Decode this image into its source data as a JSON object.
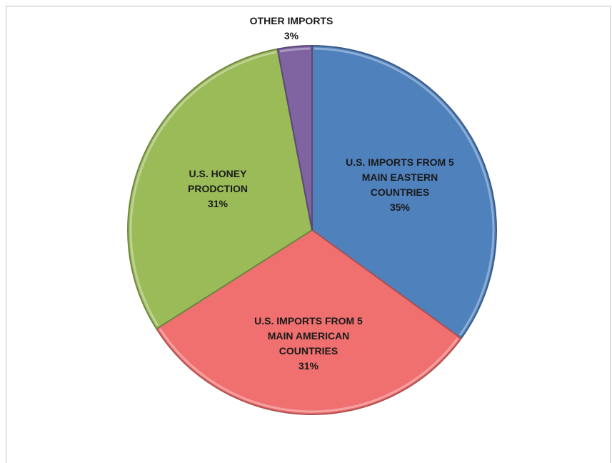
{
  "chart_data": {
    "type": "pie",
    "title": "",
    "slices": [
      {
        "label_lines": [
          "U.S. IMPORTS FROM 5",
          "MAIN EASTERN",
          "COUNTRIES"
        ],
        "percent_label": "35%",
        "value": 35,
        "color": "#4f81bd"
      },
      {
        "label_lines": [
          "U.S. IMPORTS FROM 5",
          "MAIN AMERICAN",
          "COUNTRIES"
        ],
        "percent_label": "31%",
        "value": 31,
        "color": "#f07070"
      },
      {
        "label_lines": [
          "U.S. HONEY",
          "PRODCTION"
        ],
        "percent_label": "31%",
        "value": 31,
        "color": "#9bbb59"
      },
      {
        "label_lines": [
          "OTHER IMPORTS"
        ],
        "percent_label": "3%",
        "value": 3,
        "color": "#8064a2"
      }
    ],
    "start_angle": "12 o'clock",
    "direction": "clockwise",
    "legend": "none"
  }
}
